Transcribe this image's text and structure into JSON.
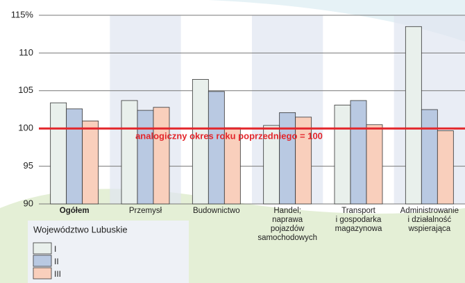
{
  "chart_data": {
    "type": "bar",
    "categories": [
      "Ogółem",
      "Przemysł",
      "Budownictwo",
      "Handel;\nnaprawa\npojazdów\nsamochodowych",
      "Transport\ni gospodarka\nmagazynowa",
      "Administrowanie\ni działalność\nwspierająca"
    ],
    "series": [
      {
        "name": "I",
        "color": "#e9f0ec",
        "values": [
          103.4,
          103.7,
          106.5,
          100.4,
          103.1,
          113.5
        ]
      },
      {
        "name": "II",
        "color": "#b9c9e2",
        "values": [
          102.6,
          102.4,
          104.9,
          102.1,
          103.7,
          102.5
        ]
      },
      {
        "name": "III",
        "color": "#f9cfbc",
        "values": [
          101.0,
          102.8,
          100.1,
          101.5,
          100.5,
          99.7
        ]
      }
    ],
    "ylim": [
      90,
      115
    ],
    "yticks": [
      90,
      95,
      100,
      105,
      110,
      {
        "value": 115,
        "label": "115%"
      }
    ],
    "grid": true,
    "reference_line": {
      "value": 100,
      "label": "analogiczny okres roku poprzedniego = 100",
      "color": "#e3262b"
    },
    "legend": {
      "title": "Województwo Lubuskie",
      "position": "bottom-left"
    }
  }
}
